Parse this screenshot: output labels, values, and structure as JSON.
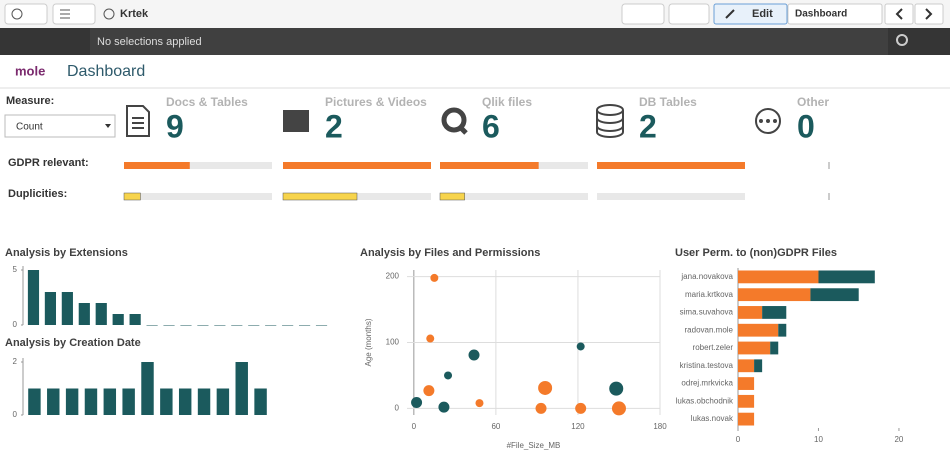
{
  "toolbar": {
    "app_name": "Krtek",
    "edit": "Edit",
    "sheet": "Dashboard"
  },
  "selection_bar": {
    "text": "No selections applied"
  },
  "header": {
    "logo": "mole",
    "title": "Dashboard"
  },
  "measure": {
    "label": "Measure:",
    "value": "Count"
  },
  "rows": {
    "gdpr_label": "GDPR relevant:",
    "dup_label": "Duplicities:"
  },
  "kpis": [
    {
      "label": "Docs & Tables",
      "value": 9,
      "gdpr": 4,
      "duplicities": 1
    },
    {
      "label": "Pictures & Videos",
      "value": 2,
      "gdpr": 2,
      "duplicities": 1
    },
    {
      "label": "Qlik files",
      "value": 6,
      "gdpr": 4,
      "duplicities": 1
    },
    {
      "label": "DB Tables",
      "value": 2,
      "gdpr": 2,
      "duplicities": 0
    },
    {
      "label": "Other",
      "value": 0,
      "gdpr": 0,
      "duplicities": 0
    }
  ],
  "chart_data": [
    {
      "type": "bar",
      "title": "Analysis by Extensions",
      "color": "#1b5a5d",
      "categories": [
        null,
        null,
        null,
        null,
        null,
        null,
        null,
        null,
        null,
        null,
        null,
        null,
        null,
        null,
        null,
        null,
        null,
        null
      ],
      "values": [
        5,
        3,
        3,
        2,
        2,
        1,
        1,
        0,
        0,
        0,
        0,
        0,
        0,
        0,
        0,
        0,
        0,
        0
      ],
      "ylim": [
        0,
        5
      ],
      "yticks": [
        0,
        5
      ]
    },
    {
      "type": "bar",
      "title": "Analysis by Creation Date",
      "color": "#1b5a5d",
      "categories": [
        null,
        null,
        null,
        null,
        null,
        null,
        null,
        null,
        null,
        null,
        null,
        null,
        null
      ],
      "values": [
        1,
        1,
        1,
        1,
        1,
        1,
        2,
        1,
        1,
        1,
        1,
        2,
        1
      ],
      "ylim": [
        0,
        2
      ],
      "yticks": [
        0,
        2
      ]
    },
    {
      "type": "scatter",
      "title": "Analysis by Files and Permissions",
      "x_label": "#File_Size_MB",
      "y_label": "Age (months)",
      "xlim": [
        -5,
        180
      ],
      "ylim": [
        -10,
        210
      ],
      "xticks": [
        0,
        60,
        120,
        180
      ],
      "yticks": [
        0,
        100,
        200
      ],
      "grid": true,
      "series": [
        {
          "color": "#f47a2a",
          "x": [
            15,
            12,
            11,
            48,
            96,
            93,
            122,
            150
          ],
          "y": [
            198,
            106,
            27,
            8,
            31,
            0,
            0,
            0
          ],
          "size": [
            1,
            1,
            2,
            1,
            3,
            2,
            2,
            3
          ]
        },
        {
          "color": "#1b5a5d",
          "x": [
            44,
            25,
            122,
            148,
            2,
            22
          ],
          "y": [
            81,
            50,
            94,
            30,
            9,
            2
          ],
          "size": [
            2,
            1,
            1,
            3,
            2,
            2
          ]
        }
      ]
    },
    {
      "type": "hbar",
      "title": "User Perm. to (non)GDPR Files",
      "stacked": true,
      "categories": [
        "jana.novakova",
        "maria.krtkova",
        "sima.suvahova",
        "radovan.mole",
        "robert.zeler",
        "kristina.testova",
        "odrej.mrkvicka",
        "lukas.obchodnik",
        "lukas.novak"
      ],
      "xlim": [
        0,
        21
      ],
      "xticks": [
        0,
        10,
        20
      ],
      "series": [
        {
          "color": "#f47a2a",
          "values": [
            10,
            9,
            3,
            5,
            4,
            2,
            2,
            2,
            2
          ]
        },
        {
          "color": "#1b5a5d",
          "values": [
            7,
            6,
            3,
            1,
            1,
            1,
            0,
            0,
            0
          ]
        }
      ]
    }
  ]
}
